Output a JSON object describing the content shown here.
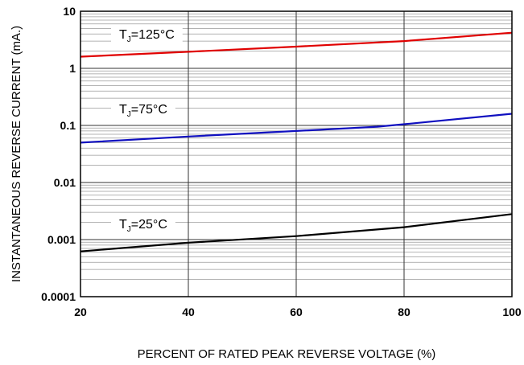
{
  "chart_data": {
    "type": "line",
    "xlabel": "PERCENT OF RATED PEAK REVERSE VOLTAGE (%)",
    "ylabel": "INSTANTANEOUS REVERSE CURRENT (mA.)",
    "x_scale": "linear",
    "y_scale": "log",
    "xlim": [
      20,
      100
    ],
    "ylim": [
      0.0001,
      10
    ],
    "x_ticks": [
      "20",
      "40",
      "60",
      "80",
      "100"
    ],
    "x_tick_values": [
      20,
      40,
      60,
      80,
      100
    ],
    "y_ticks": [
      "0.0001",
      "0.001",
      "0.01",
      "0.1",
      "1",
      "10"
    ],
    "y_tick_values": [
      0.0001,
      0.001,
      0.01,
      0.1,
      1,
      10
    ],
    "grid": true,
    "series": [
      {
        "name": "TJ=125°C",
        "label_main": "T",
        "label_sub": "J",
        "label_rest": "=125°C",
        "color": "#e00000",
        "x": [
          20,
          40,
          60,
          80,
          100
        ],
        "y": [
          1.6,
          1.95,
          2.4,
          3.0,
          4.2
        ]
      },
      {
        "name": "TJ=75°C",
        "label_main": "T",
        "label_sub": "J",
        "label_rest": "=75°C",
        "color": "#1010c0",
        "x": [
          20,
          40,
          60,
          75,
          80,
          100
        ],
        "y": [
          0.05,
          0.064,
          0.08,
          0.095,
          0.105,
          0.16
        ]
      },
      {
        "name": "TJ=25°C",
        "label_main": "T",
        "label_sub": "J",
        "label_rest": "=25°C",
        "color": "#000000",
        "x": [
          20,
          40,
          60,
          80,
          100
        ],
        "y": [
          0.00062,
          0.00088,
          0.00115,
          0.00165,
          0.0028
        ]
      }
    ]
  }
}
